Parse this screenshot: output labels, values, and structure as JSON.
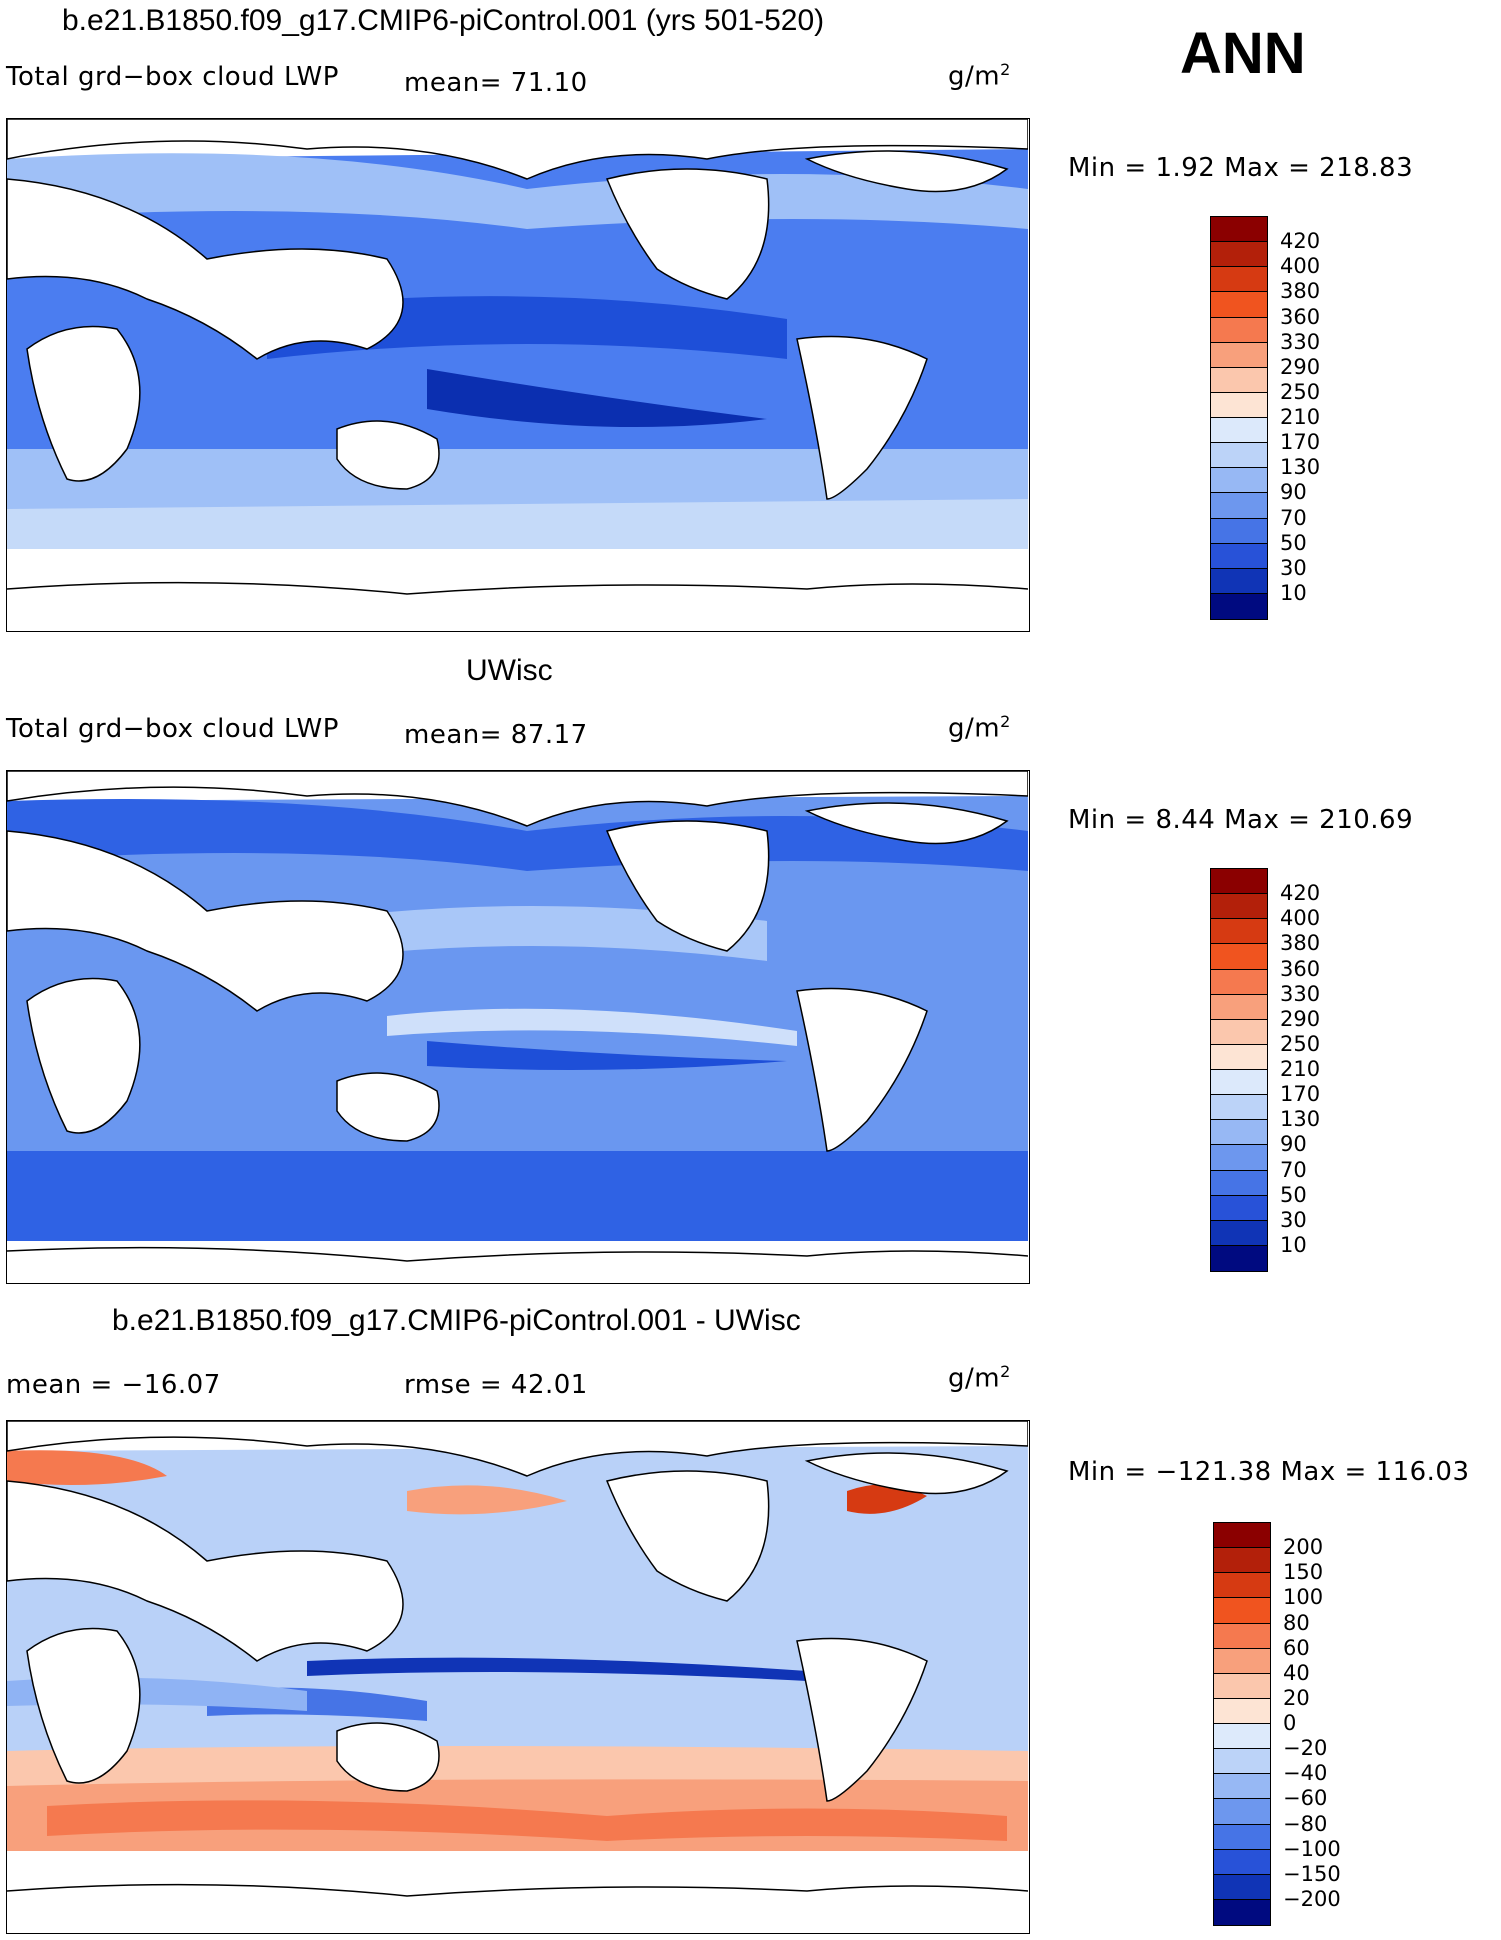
{
  "season": "ANN",
  "units": "g/m",
  "units_sup": "2",
  "panels": [
    {
      "title": "b.e21.B1850.f09_g17.CMIP6-piControl.001 (yrs 501-520)",
      "field_label": "Total grd−box cloud LWP",
      "mean_text": "mean=   71.10",
      "minmax_text": "Min =    1.92 Max = 218.83",
      "colorbar": {
        "labels": [
          "420",
          "400",
          "380",
          "360",
          "330",
          "290",
          "250",
          "210",
          "170",
          "130",
          "90",
          "70",
          "50",
          "30",
          "10"
        ],
        "colors": [
          "#8b0000",
          "#b3200a",
          "#d63a12",
          "#f0541f",
          "#f5794f",
          "#f8a07c",
          "#fbc7ad",
          "#fde4d4",
          "#dce9fb",
          "#bcd3f8",
          "#97b8f4",
          "#6d97ee",
          "#4674e6",
          "#2852d8",
          "#1034b6",
          "#000a80"
        ]
      },
      "field_colors": {
        "ocean_low": "#1e4fd8",
        "ocean_mid": "#4b7df0",
        "ocean_high": "#9fc0f7",
        "ocean_pale": "#c5daf9"
      }
    },
    {
      "title": "UWisc",
      "field_label": "Total grd−box cloud LWP",
      "mean_text": "mean=   87.17",
      "minmax_text": "Min =    8.44 Max = 210.69",
      "colorbar": {
        "labels": [
          "420",
          "400",
          "380",
          "360",
          "330",
          "290",
          "250",
          "210",
          "170",
          "130",
          "90",
          "70",
          "50",
          "30",
          "10"
        ],
        "colors": [
          "#8b0000",
          "#b3200a",
          "#d63a12",
          "#f0541f",
          "#f5794f",
          "#f8a07c",
          "#fbc7ad",
          "#fde4d4",
          "#dce9fb",
          "#bcd3f8",
          "#97b8f4",
          "#6d97ee",
          "#4674e6",
          "#2852d8",
          "#1034b6",
          "#000a80"
        ]
      },
      "field_colors": {
        "ocean_low": "#2f62e4",
        "ocean_mid": "#6a97f0",
        "ocean_high": "#a9c7f8",
        "ocean_pale": "#cfe0fa"
      }
    },
    {
      "title": "b.e21.B1850.f09_g17.CMIP6-piControl.001 - UWisc",
      "field_label": "",
      "mean_text": "mean = −16.07",
      "rmse_text": "rmse =   42.01",
      "minmax_text": "Min = −121.38 Max = 116.03",
      "colorbar": {
        "labels": [
          "200",
          "150",
          "100",
          "80",
          "60",
          "40",
          "20",
          "0",
          "−20",
          "−40",
          "−60",
          "−80",
          "−100",
          "−150",
          "−200"
        ],
        "colors": [
          "#8b0000",
          "#b3200a",
          "#d63a12",
          "#f0541f",
          "#f5794f",
          "#f8a07c",
          "#fbc7ad",
          "#fde4d4",
          "#ddeafb",
          "#bcd3f8",
          "#97b8f4",
          "#6d97ee",
          "#4674e6",
          "#2852d8",
          "#1034b6",
          "#000a80"
        ]
      },
      "field_colors": {
        "ocean_low": "#8fb3f4",
        "ocean_mid": "#b9d1f8",
        "ocean_high": "#f6a488",
        "ocean_pale": "#dde9fb"
      }
    }
  ]
}
